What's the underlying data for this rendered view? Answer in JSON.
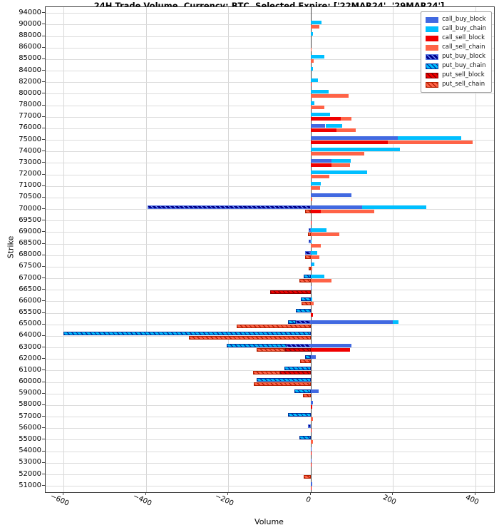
{
  "chart_data": {
    "type": "bar",
    "orientation": "horizontal",
    "title": "24H Trade Volume, Currency: BTC, Selected Expire: ['22MAR24', '29MAR24']",
    "xlabel": "Volume",
    "ylabel": "Strike",
    "xlim": [
      -643,
      445
    ],
    "x_ticks": [
      -600,
      -400,
      -200,
      0,
      200,
      400
    ],
    "x_tick_labels": [
      "−600",
      "−400",
      "−200",
      "0",
      "200",
      "400"
    ],
    "grid": true,
    "legend_position": "upper-right",
    "legend": [
      {
        "label": "call_buy_block",
        "key": "cbb",
        "color": "#4169e1",
        "hatched": false
      },
      {
        "label": "call_buy_chain",
        "key": "cbc",
        "color": "#00bfff",
        "hatched": false
      },
      {
        "label": "call_sell_block",
        "key": "csb",
        "color": "#f00000",
        "hatched": false
      },
      {
        "label": "call_sell_chain",
        "key": "csc",
        "color": "#ff6347",
        "hatched": false
      },
      {
        "label": "put_buy_block",
        "key": "pbb",
        "color": "#00008b",
        "hatched": true
      },
      {
        "label": "put_buy_chain",
        "key": "pbc",
        "color": "#00bfff",
        "hatched": true
      },
      {
        "label": "put_sell_block",
        "key": "psb",
        "color": "#ee0000",
        "hatched": true
      },
      {
        "label": "put_sell_chain",
        "key": "psc",
        "color": "#ff6347",
        "hatched": true
      }
    ],
    "note": "calls plotted rightward (positive volume), puts plotted leftward (negative volume); each strike has a buy line (upper) and sell line (lower); [block, chain] segments are stacked from zero",
    "strikes": [
      {
        "s": "94000",
        "cb": [
          0,
          0
        ],
        "cs": [
          0,
          0
        ],
        "pb": [
          0,
          0
        ],
        "ps": [
          0,
          0
        ]
      },
      {
        "s": "90000",
        "cb": [
          0,
          26
        ],
        "cs": [
          0,
          22
        ],
        "pb": [
          0,
          0
        ],
        "ps": [
          0,
          0
        ]
      },
      {
        "s": "88000",
        "cb": [
          0,
          6
        ],
        "cs": [
          0,
          0
        ],
        "pb": [
          0,
          0
        ],
        "ps": [
          0,
          0
        ]
      },
      {
        "s": "86000",
        "cb": [
          0,
          0
        ],
        "cs": [
          0,
          3
        ],
        "pb": [
          0,
          0
        ],
        "ps": [
          0,
          0
        ]
      },
      {
        "s": "85000",
        "cb": [
          0,
          33
        ],
        "cs": [
          0,
          8
        ],
        "pb": [
          0,
          0
        ],
        "ps": [
          0,
          0
        ]
      },
      {
        "s": "84000",
        "cb": [
          0,
          5
        ],
        "cs": [
          0,
          0
        ],
        "pb": [
          0,
          0
        ],
        "ps": [
          0,
          0
        ]
      },
      {
        "s": "82000",
        "cb": [
          0,
          17
        ],
        "cs": [
          3,
          0
        ],
        "pb": [
          0,
          0
        ],
        "ps": [
          0,
          0
        ]
      },
      {
        "s": "80000",
        "cb": [
          0,
          44
        ],
        "cs": [
          0,
          92
        ],
        "pb": [
          0,
          0
        ],
        "ps": [
          0,
          0
        ]
      },
      {
        "s": "78000",
        "cb": [
          0,
          9
        ],
        "cs": [
          0,
          33
        ],
        "pb": [
          0,
          0
        ],
        "ps": [
          0,
          0
        ]
      },
      {
        "s": "77000",
        "cb": [
          0,
          48
        ],
        "cs": [
          74,
          25
        ],
        "pb": [
          0,
          0
        ],
        "ps": [
          0,
          0
        ]
      },
      {
        "s": "76000",
        "cb": [
          36,
          40
        ],
        "cs": [
          62,
          47
        ],
        "pb": [
          0,
          0
        ],
        "ps": [
          0,
          0
        ]
      },
      {
        "s": "75000",
        "cb": [
          212,
          154
        ],
        "cs": [
          187,
          207
        ],
        "pb": [
          0,
          0
        ],
        "ps": [
          0,
          0
        ]
      },
      {
        "s": "74000",
        "cb": [
          0,
          217
        ],
        "cs": [
          0,
          131
        ],
        "pb": [
          0,
          0
        ],
        "ps": [
          0,
          0
        ]
      },
      {
        "s": "73000",
        "cb": [
          50,
          47
        ],
        "cs": [
          50,
          45
        ],
        "pb": [
          0,
          0
        ],
        "ps": [
          0,
          0
        ]
      },
      {
        "s": "72000",
        "cb": [
          0,
          137
        ],
        "cs": [
          0,
          46
        ],
        "pb": [
          0,
          0
        ],
        "ps": [
          0,
          0
        ]
      },
      {
        "s": "71000",
        "cb": [
          0,
          25
        ],
        "cs": [
          0,
          23
        ],
        "pb": [
          0,
          0
        ],
        "ps": [
          0,
          0
        ]
      },
      {
        "s": "70500",
        "cb": [
          100,
          0
        ],
        "cs": [
          0,
          4
        ],
        "pb": [
          0,
          0
        ],
        "ps": [
          0,
          0
        ]
      },
      {
        "s": "70000",
        "cb": [
          125,
          155
        ],
        "cs": [
          24,
          131
        ],
        "pb": [
          -395,
          0
        ],
        "ps": [
          0,
          -13
        ]
      },
      {
        "s": "69500",
        "cb": [
          0,
          0
        ],
        "cs": [
          3,
          0
        ],
        "pb": [
          0,
          0
        ],
        "ps": [
          0,
          0
        ]
      },
      {
        "s": "69000",
        "cb": [
          0,
          39
        ],
        "cs": [
          0,
          70
        ],
        "pb": [
          -5,
          0
        ],
        "ps": [
          0,
          -6
        ]
      },
      {
        "s": "68500",
        "cb": [
          0,
          3
        ],
        "cs": [
          0,
          24
        ],
        "pb": [
          -5,
          0
        ],
        "ps": [
          0,
          0
        ]
      },
      {
        "s": "68000",
        "cb": [
          0,
          16
        ],
        "cs": [
          0,
          22
        ],
        "pb": [
          -13,
          0
        ],
        "ps": [
          0,
          -14
        ]
      },
      {
        "s": "67500",
        "cb": [
          2,
          8
        ],
        "cs": [
          0,
          4
        ],
        "pb": [
          0,
          0
        ],
        "ps": [
          0,
          -5
        ]
      },
      {
        "s": "67000",
        "cb": [
          0,
          33
        ],
        "cs": [
          0,
          50
        ],
        "pb": [
          0,
          -17
        ],
        "ps": [
          0,
          -28
        ]
      },
      {
        "s": "66500",
        "cb": [
          3,
          0
        ],
        "cs": [
          0,
          0
        ],
        "pb": [
          0,
          0
        ],
        "ps": [
          -98,
          0
        ]
      },
      {
        "s": "66000",
        "cb": [
          0,
          4
        ],
        "cs": [
          0,
          8
        ],
        "pb": [
          0,
          -24
        ],
        "ps": [
          0,
          -22
        ]
      },
      {
        "s": "65500",
        "cb": [
          0,
          0
        ],
        "cs": [
          5,
          0
        ],
        "pb": [
          0,
          -35
        ],
        "ps": [
          0,
          0
        ]
      },
      {
        "s": "65000",
        "cb": [
          200,
          14
        ],
        "cs": [
          0,
          0
        ],
        "pb": [
          -35,
          -19
        ],
        "ps": [
          0,
          -180
        ]
      },
      {
        "s": "64000",
        "cb": [
          0,
          0
        ],
        "cs": [
          0,
          0
        ],
        "pb": [
          0,
          -600
        ],
        "ps": [
          0,
          -296
        ]
      },
      {
        "s": "63000",
        "cb": [
          99,
          0
        ],
        "cs": [
          96,
          0
        ],
        "pb": [
          -59,
          -145
        ],
        "ps": [
          -61,
          -70
        ]
      },
      {
        "s": "62000",
        "cb": [
          13,
          0
        ],
        "cs": [
          0,
          0
        ],
        "pb": [
          0,
          -14
        ],
        "ps": [
          0,
          -25
        ]
      },
      {
        "s": "61000",
        "cb": [
          0,
          0
        ],
        "cs": [
          0,
          0
        ],
        "pb": [
          0,
          -64
        ],
        "ps": [
          -74,
          -65
        ]
      },
      {
        "s": "60000",
        "cb": [
          0,
          0
        ],
        "cs": [
          0,
          0
        ],
        "pb": [
          0,
          -131
        ],
        "ps": [
          0,
          -138
        ]
      },
      {
        "s": "59000",
        "cb": [
          20,
          0
        ],
        "cs": [
          0,
          0
        ],
        "pb": [
          0,
          -39
        ],
        "ps": [
          0,
          -19
        ]
      },
      {
        "s": "58000",
        "cb": [
          5,
          0
        ],
        "cs": [
          4,
          0
        ],
        "pb": [
          0,
          0
        ],
        "ps": [
          0,
          0
        ]
      },
      {
        "s": "57000",
        "cb": [
          0,
          0
        ],
        "cs": [
          0,
          5
        ],
        "pb": [
          0,
          -54
        ],
        "ps": [
          0,
          0
        ]
      },
      {
        "s": "56000",
        "cb": [
          0,
          0
        ],
        "cs": [
          3,
          0
        ],
        "pb": [
          -7,
          0
        ],
        "ps": [
          0,
          0
        ]
      },
      {
        "s": "55000",
        "cb": [
          0,
          0
        ],
        "cs": [
          0,
          5
        ],
        "pb": [
          0,
          -28
        ],
        "ps": [
          0,
          0
        ]
      },
      {
        "s": "54000",
        "cb": [
          2,
          0
        ],
        "cs": [
          2,
          0
        ],
        "pb": [
          0,
          0
        ],
        "ps": [
          0,
          0
        ]
      },
      {
        "s": "53000",
        "cb": [
          3,
          0
        ],
        "cs": [
          2,
          0
        ],
        "pb": [
          0,
          0
        ],
        "ps": [
          0,
          0
        ]
      },
      {
        "s": "52000",
        "cb": [
          0,
          0
        ],
        "cs": [
          0,
          0
        ],
        "pb": [
          0,
          0
        ],
        "ps": [
          0,
          -17
        ]
      },
      {
        "s": "51000",
        "cb": [
          4,
          0
        ],
        "cs": [
          3,
          0
        ],
        "pb": [
          0,
          0
        ],
        "ps": [
          0,
          0
        ]
      }
    ]
  }
}
